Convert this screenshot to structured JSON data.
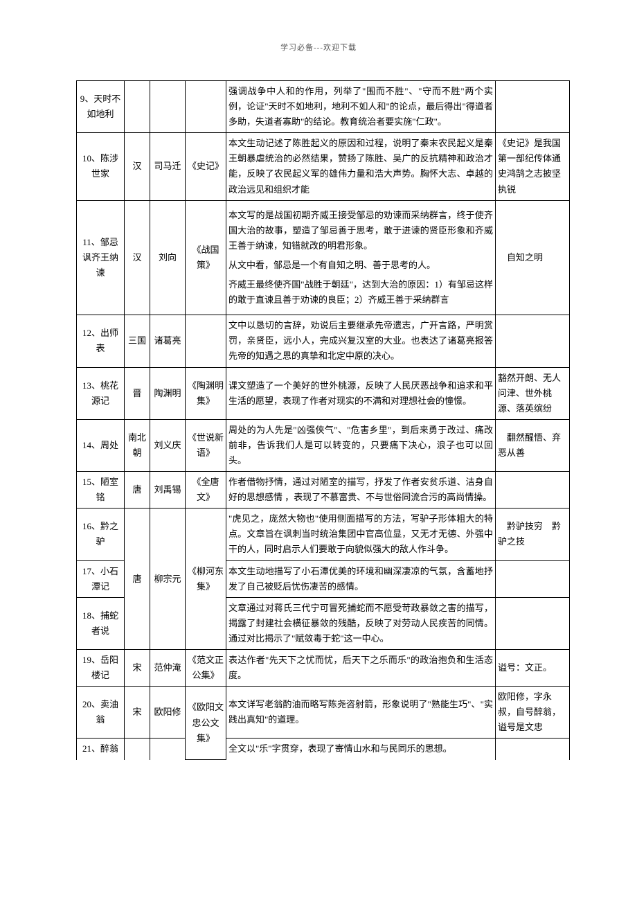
{
  "header": "学习必备---欢迎下载",
  "rows": [
    {
      "c1": "9、天时不如地利",
      "c2": "",
      "c3": "",
      "c4": "",
      "c5": "强调战争中人和的作用，列举了\"围而不胜\"、\"守而不胜\"两个实例，论证\"天时不如地利，地利不如人和\"的论点，最后得出\"得道者多助，失道者寡助\"的结论。教育统治者要实施\"仁政\"。",
      "c6": ""
    },
    {
      "c1": "10、陈涉世家",
      "c2": "汉",
      "c3": "司马迁",
      "c4": "《史记》",
      "c5": "本文生动记述了陈胜起义的原因和过程，说明了秦末农民起义是秦王朝暴虐统治的必然结果，赞扬了陈胜、吴广的反抗精神和政治才能，反映了农民起义军的雄伟力量和浩大声势。胸怀大志、卓越的政治远见和组织才能",
      "c6": "《史记》是我国第一部纪传体通史鸿鹄之志披坚执锐"
    },
    {
      "c1": "11、邹忌讽齐王纳谏",
      "c2": "汉",
      "c3": "刘向",
      "c4": "《战国策》",
      "c5_multi": [
        "本文写的是战国初期齐威王接受邹忌的劝谏而采纳群言，终于使齐国大治的故事，塑造了邹忌善于思考，敢于进谏的贤臣形象和齐威王善于纳谏，知错就改的明君形象。",
        "从文中看，邹忌是一个有自知之明、善于思考的人。",
        "齐威王最终使齐国\"战胜于朝廷\"，达到大治的原因：1）有邹忌这样的敢于直谏且善于劝谏的良臣；2）齐威王善于采纳群言"
      ],
      "c6": "　自知之明"
    },
    {
      "c1": "12、出师表",
      "c2": "三国",
      "c3": "诸葛亮",
      "c4": "",
      "c5": "文中以恳切的言辞，劝说后主要继承先帝遗志，广开言路，严明赏罚，亲贤臣，远小人，完成兴复汉室的大业。也表达了诸葛亮报答先帝的知遇之恩的真挚和北定中原的决心。",
      "c6": ""
    },
    {
      "c1": "13、桃花源记",
      "c2": "晋",
      "c3": "陶渊明",
      "c4": "《陶渊明集》",
      "c5": "课文塑造了一个美好的世外桃源，反映了人民厌恶战争和追求和平生活的愿望，表现了作者对现实的不满和对理想社会的憧憬。",
      "c6": "豁然开朗、无人问津、世外桃源、落英缤纷"
    },
    {
      "c1": "14、周处",
      "c2": "南北朝",
      "c3": "刘义庆",
      "c4": "《世说新语》",
      "c5": "周处的为人先是\"凶强侠气\"、\"危害乡里\"，到后来勇于改过、痛改前非，告诉我们人是可以转变的，只要痛下决心，浪子也可以回头。",
      "c6": "　翻然醒悟、弃恶从善"
    },
    {
      "c1": "15、陋室铭",
      "c2": "唐",
      "c3": "刘禹锡",
      "c4": "《全唐文》",
      "c5": "作者借物抒情，通过对陋室的描写，抒发了作者安贫乐道、洁身自好的思想感情 ，表现了不慕富贵、不与世俗同流合污的高尚情操。",
      "c6": ""
    },
    {
      "c1": "16、黔之驴",
      "c5": "\"虎见之，庞然大物也\"使用侧面描写的方法，写驴子形体粗大的特点。文章旨在讽刺当时统治集团中官高位显，又无才无德、外强中干的人，同时启示人们要敢于向貌似强大的敌人作斗争。",
      "c6": "　黔驴技穷　黔驴之技"
    },
    {
      "c1": "17、小石潭记",
      "c2": "唐",
      "c3": "柳宗元",
      "c4": "《柳河东集》",
      "c5": "本文生动地描写了小石潭优美的环境和幽深凄凉的气氛，含蓄地抒发了自己被贬后忧伤凄苦的感情。",
      "c6": ""
    },
    {
      "c1": "18、捕蛇者说",
      "c5": "文章通过对蒋氏三代宁可冒死捕蛇而不愿受苛政暴敛之害的描写，揭露了封建社会横征暴敛的残酷，反映了对劳动人民疾苦的同情。通过对比揭示了\"赋敛毒于蛇\"这一中心。",
      "c6": ""
    },
    {
      "c1": "19、岳阳楼记",
      "c2": "宋",
      "c3": "范仲淹",
      "c4": "《范文正公集》",
      "c5": "表达作者\"先天下之忧而忧，后天下之乐而乐\"的政治抱负和生活态度。",
      "c6": "谥号：文正。"
    },
    {
      "c1": "20、卖油翁",
      "c2": "宋",
      "c3": "欧阳修",
      "c4": "《欧阳文忠公文集》",
      "c5": "本文详写老翁酌油而略写陈尧咨射箭，形象说明了\"熟能生巧\"、\"实践出真知\"的道理。",
      "c6": "欧阳修，字永叔，自号醉翁，谥号是文忠"
    },
    {
      "c1": "21、醉翁",
      "c5": "全文以\"乐\"字贯穿，表现了寄情山水和与民同乐的思想。",
      "c6": ""
    }
  ]
}
